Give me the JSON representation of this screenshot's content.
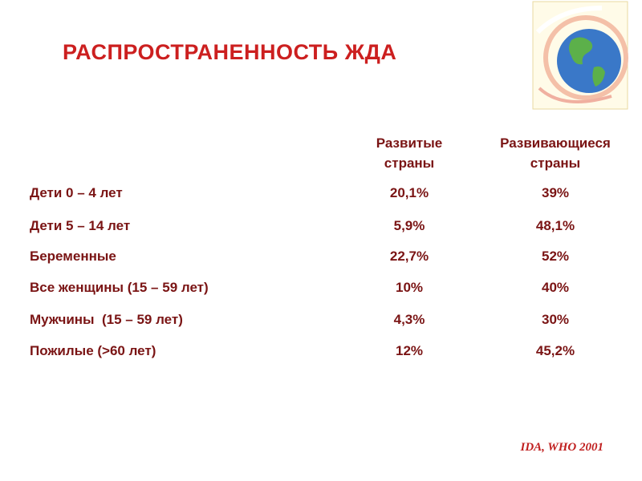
{
  "title": "РАСПРОСТРАНЕННОСТЬ ЖДА",
  "table": {
    "columns": [
      "Развитые страны",
      "Развивающиеся страны"
    ],
    "rows": [
      [
        "Дети 0 – 4 лет",
        "20,1%",
        "39%"
      ],
      [
        "Дети 5 – 14 лет",
        "5,9%",
        "48,1%"
      ],
      [
        "Беременные",
        "22,7%",
        "52%"
      ],
      [
        "Все женщины (15 – 59 лет)",
        "10%",
        "40%"
      ],
      [
        "Мужчины  (15 – 59 лет)",
        "4,3%",
        "30%"
      ],
      [
        "Пожилые (>60 лет)",
        "12%",
        "45,2%"
      ]
    ]
  },
  "source": "IDA, WHO 2001"
}
